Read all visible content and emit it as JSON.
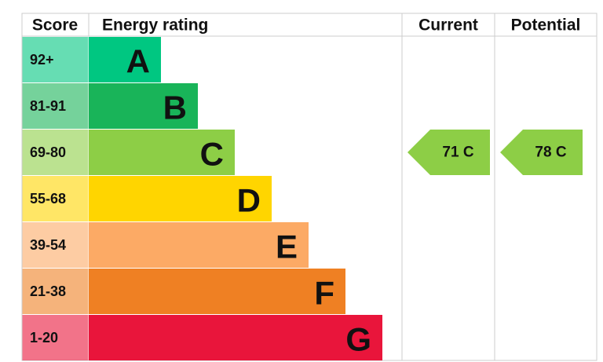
{
  "chart_data": {
    "type": "epc",
    "headers": {
      "score": "Score",
      "rating": "Energy rating",
      "current": "Current",
      "potential": "Potential"
    },
    "bands": [
      {
        "score": "92+",
        "letter": "A",
        "color": "#00c781"
      },
      {
        "score": "81-91",
        "letter": "B",
        "color": "#19b459"
      },
      {
        "score": "69-80",
        "letter": "C",
        "color": "#8dce46"
      },
      {
        "score": "55-68",
        "letter": "D",
        "color": "#ffd500"
      },
      {
        "score": "39-54",
        "letter": "E",
        "color": "#fcaa65"
      },
      {
        "score": "21-38",
        "letter": "F",
        "color": "#ef8023"
      },
      {
        "score": "1-20",
        "letter": "G",
        "color": "#e9153b"
      }
    ],
    "current": {
      "value": 71,
      "label": "71 C"
    },
    "potential": {
      "value": 78,
      "label": "78 C"
    }
  }
}
